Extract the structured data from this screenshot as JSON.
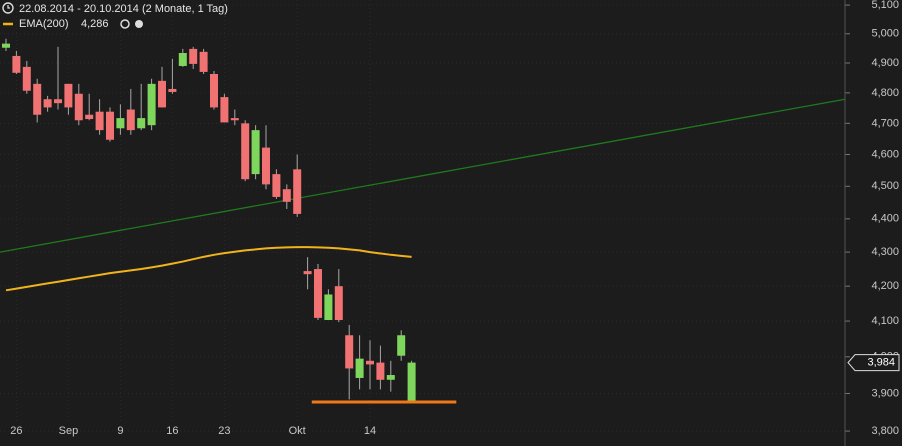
{
  "chart_data": {
    "type": "candlestick",
    "title": "22.08.2014 - 20.10.2014 (2 Monate, 1 Tag)",
    "categories": [
      null,
      "26",
      null,
      null,
      null,
      null,
      "Sep",
      null,
      null,
      null,
      null,
      "9",
      null,
      null,
      null,
      null,
      "16",
      null,
      null,
      null,
      null,
      "23",
      null,
      null,
      null,
      null,
      null,
      null,
      "Okt",
      null,
      null,
      null,
      null,
      null,
      null,
      "14",
      null,
      null,
      null,
      null
    ],
    "up_color": "#7fd65c",
    "down_color": "#f07272",
    "wick_color": "#a8a8a8",
    "open": [
      4952,
      4924,
      4887,
      4830,
      4779,
      4779,
      4830,
      4797,
      4728,
      4738,
      4738,
      4684,
      4745,
      4684,
      4694,
      4840,
      4813,
      4890,
      4948,
      4938,
      4863,
      4786,
      4717,
      4700,
      4538,
      4622,
      4538,
      4491,
      4553,
      4244,
      4250,
      4103,
      4200,
      4060,
      3942,
      3989,
      3984,
      3937,
      4003,
      3879
    ],
    "high": [
      4983,
      4941,
      4907,
      4847,
      4790,
      4955,
      4830,
      4830,
      4797,
      4779,
      4752,
      4762,
      4813,
      4830,
      4847,
      4887,
      4914,
      4948,
      4955,
      4948,
      4873,
      4797,
      4745,
      4710,
      4694,
      4694,
      4553,
      4506,
      4600,
      4285,
      4265,
      4191,
      4250,
      4089,
      4060,
      4046,
      4031,
      3989,
      4074,
      3989
    ],
    "low": [
      4941,
      4863,
      4797,
      4703,
      4738,
      4745,
      4728,
      4694,
      4710,
      4663,
      4641,
      4663,
      4663,
      4678,
      4678,
      4752,
      4797,
      4887,
      4880,
      4863,
      4745,
      4703,
      4694,
      4516,
      4522,
      4491,
      4461,
      4430,
      4406,
      4191,
      4103,
      4103,
      4097,
      3884,
      3911,
      3911,
      3911,
      3905,
      3989,
      3876
    ],
    "close": [
      4966,
      4867,
      4807,
      4728,
      4752,
      4766,
      4752,
      4710,
      4714,
      4678,
      4647,
      4717,
      4678,
      4717,
      4830,
      4752,
      4803,
      4934,
      4897,
      4870,
      4752,
      4703,
      4710,
      4522,
      4678,
      4506,
      4467,
      4452,
      4415,
      4235,
      4109,
      4176,
      4103,
      3968,
      3995,
      3979,
      3937,
      3950,
      4060,
      3984
    ],
    "series": [
      {
        "name": "EMA(200)",
        "value_label": "4,286",
        "color": "#f0b31c",
        "values": [
          4188,
          4193,
          4198,
          4203,
          4208,
          4213,
          4218,
          4223,
          4228,
          4233,
          4238,
          4242,
          4246,
          4250,
          4255,
          4260,
          4266,
          4272,
          4279,
          4286,
          4292,
          4297,
          4301,
          4305,
          4308,
          4311,
          4313,
          4314,
          4315,
          4315,
          4314,
          4313,
          4311,
          4308,
          4305,
          4300,
          4296,
          4292,
          4289,
          4286
        ]
      }
    ],
    "trend_line": {
      "color": "#1f7a1f",
      "values": [
        4300,
        4779
      ]
    },
    "support_line": {
      "color": "#f07818",
      "value": 3877
    },
    "last_price": {
      "value": 3984,
      "label": "3,984"
    },
    "log_scale": true,
    "ylim": [
      3761,
      5118
    ],
    "yticks": [
      {
        "value": 5100,
        "label": "5,100"
      },
      {
        "value": 5000,
        "label": "5,000"
      },
      {
        "value": 4900,
        "label": "4,900"
      },
      {
        "value": 4800,
        "label": "4,800"
      },
      {
        "value": 4700,
        "label": "4,700"
      },
      {
        "value": 4600,
        "label": "4,600"
      },
      {
        "value": 4500,
        "label": "4,500"
      },
      {
        "value": 4400,
        "label": "4,400"
      },
      {
        "value": 4300,
        "label": "4,300"
      },
      {
        "value": 4200,
        "label": "4,200"
      },
      {
        "value": 4100,
        "label": "4,100"
      },
      {
        "value": 4000,
        "label": "4,000"
      },
      {
        "value": 3900,
        "label": "3,900"
      },
      {
        "value": 3800,
        "label": "3,800"
      }
    ],
    "grid": true
  }
}
